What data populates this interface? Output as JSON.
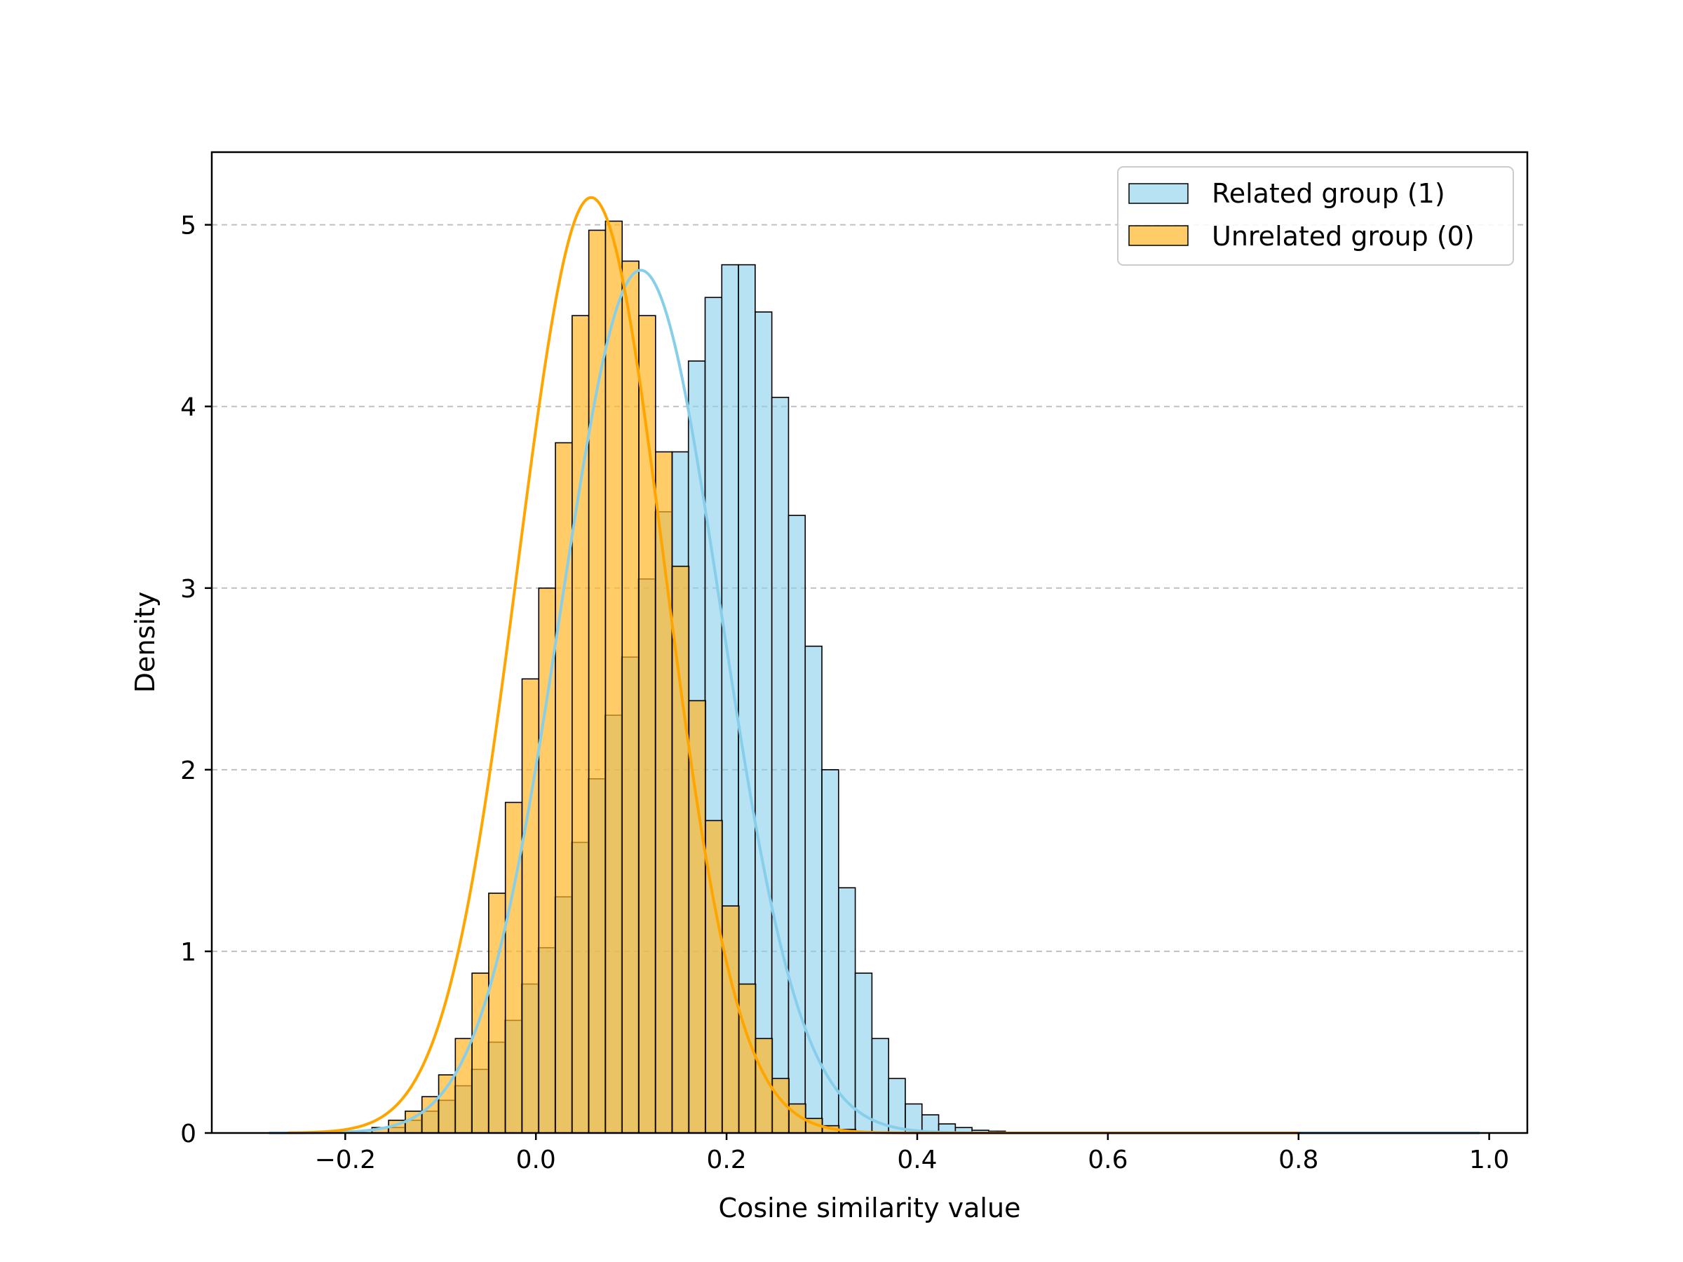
{
  "chart_data": {
    "type": "histogram",
    "xlabel": "Cosine similarity value",
    "ylabel": "Density",
    "xlim": [
      -0.34,
      1.04
    ],
    "ylim": [
      0,
      5.4
    ],
    "x_ticks": [
      "−0.2",
      "0.0",
      "0.2",
      "0.4",
      "0.6",
      "0.8",
      "1.0"
    ],
    "x_tick_values": [
      -0.2,
      0.0,
      0.2,
      0.4,
      0.6,
      0.8,
      1.0
    ],
    "y_ticks": [
      "0",
      "1",
      "2",
      "3",
      "4",
      "5"
    ],
    "y_tick_values": [
      0,
      1,
      2,
      3,
      4,
      5
    ],
    "grid": "y-axis dashed",
    "legend_position": "top-right",
    "bin_width": 0.0175,
    "series": [
      {
        "name": "Related group (1)",
        "color": "#87CEEB",
        "bin_start": -0.155,
        "values": [
          0.03,
          0.07,
          0.12,
          0.18,
          0.26,
          0.35,
          0.5,
          0.62,
          0.82,
          1.02,
          1.3,
          1.6,
          1.95,
          2.3,
          2.62,
          3.05,
          3.42,
          3.75,
          4.25,
          4.6,
          4.78,
          4.78,
          4.52,
          4.05,
          3.4,
          2.68,
          2.0,
          1.35,
          0.88,
          0.52,
          0.3,
          0.16,
          0.1,
          0.05,
          0.03,
          0.015,
          0.01
        ]
      },
      {
        "name": "Unrelated group (0)",
        "color": "#FFB627",
        "bin_start": -0.172,
        "values": [
          0.03,
          0.07,
          0.12,
          0.2,
          0.32,
          0.52,
          0.88,
          1.32,
          1.82,
          2.5,
          3.0,
          3.8,
          4.5,
          4.97,
          5.02,
          4.8,
          4.5,
          3.75,
          3.12,
          2.38,
          1.72,
          1.25,
          0.82,
          0.52,
          0.3,
          0.16,
          0.08,
          0.04,
          0.02
        ]
      }
    ],
    "kde": [
      {
        "name": "Related group (1)",
        "mean": 0.11,
        "sd": 0.084,
        "peak": 4.75,
        "range": [
          -0.28,
          0.99
        ]
      },
      {
        "name": "Unrelated group (0)",
        "mean": 0.058,
        "sd": 0.077,
        "peak": 5.15,
        "range": [
          -0.26,
          0.8
        ]
      }
    ]
  }
}
